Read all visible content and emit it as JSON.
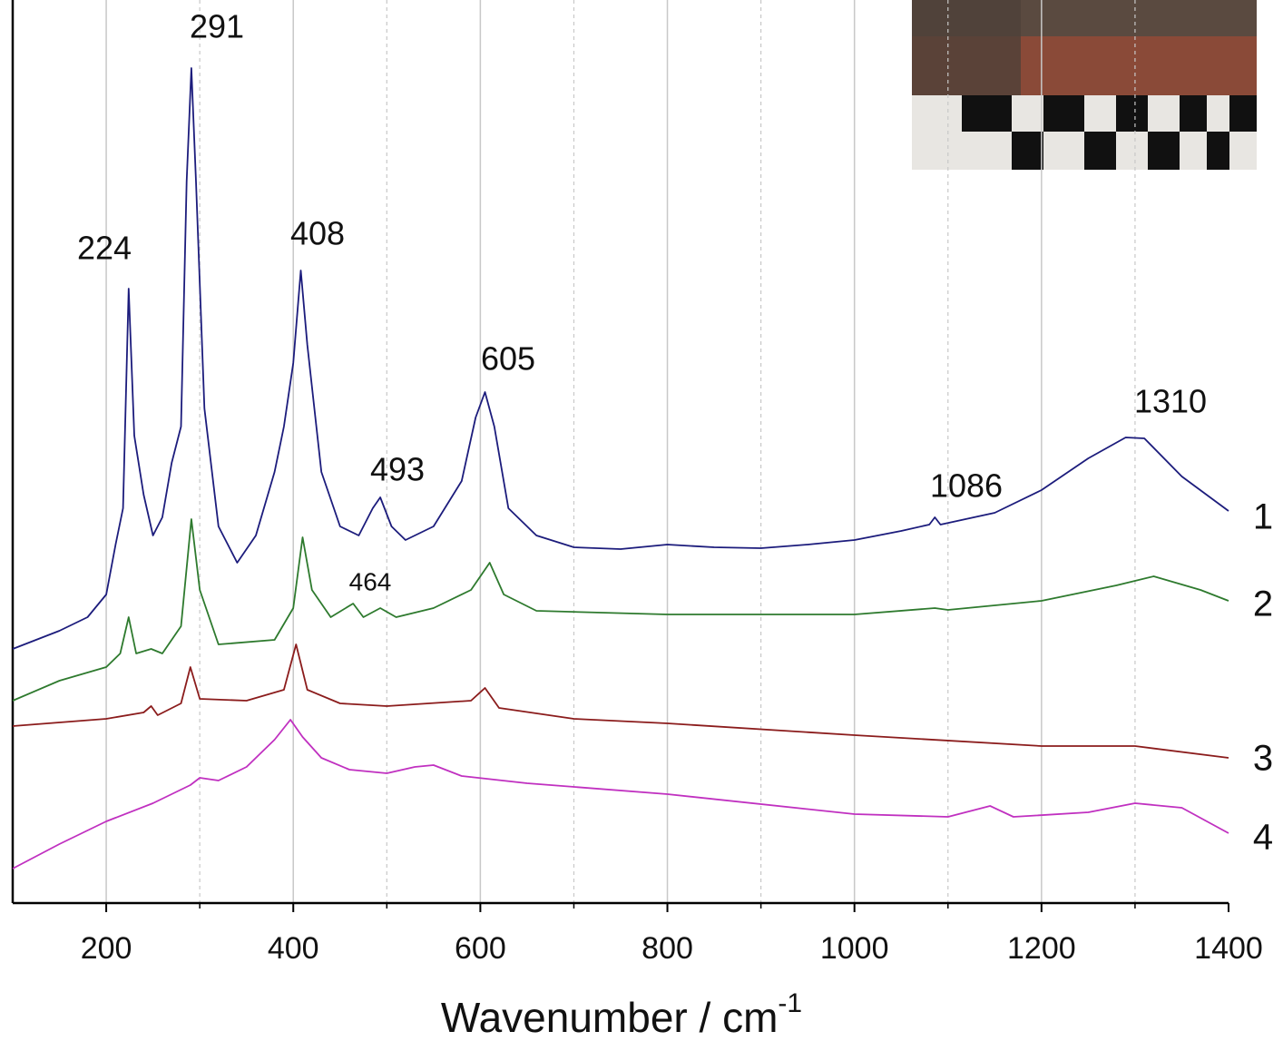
{
  "chart_data": {
    "type": "line",
    "xlabel": "Wavenumber / cm",
    "xlabel_sup": "-1",
    "xlim": [
      100,
      1400
    ],
    "xticks": [
      200,
      400,
      600,
      800,
      1000,
      1200,
      1400
    ],
    "xminorticks": [
      300,
      500,
      700,
      900,
      1100,
      1300
    ],
    "ylim": [
      0,
      1000
    ],
    "grid": true,
    "annotations": [
      "224",
      "291",
      "408",
      "605",
      "493",
      "1086",
      "1310",
      "464"
    ],
    "series": [
      {
        "name": "1",
        "color": "#1c1c7c",
        "x": [
          100,
          150,
          180,
          200,
          210,
          218,
          224,
          230,
          240,
          250,
          260,
          270,
          280,
          286,
          291,
          296,
          305,
          320,
          340,
          360,
          380,
          390,
          400,
          408,
          415,
          430,
          450,
          470,
          485,
          493,
          505,
          520,
          550,
          580,
          595,
          605,
          615,
          630,
          660,
          700,
          750,
          800,
          850,
          900,
          950,
          1000,
          1050,
          1080,
          1086,
          1092,
          1150,
          1200,
          1250,
          1290,
          1310,
          1350,
          1400
        ],
        "values": [
          280,
          300,
          315,
          340,
          395,
          435,
          677,
          515,
          450,
          405,
          425,
          485,
          525,
          795,
          920,
          795,
          545,
          415,
          375,
          405,
          475,
          525,
          595,
          697,
          615,
          475,
          415,
          405,
          435,
          447,
          415,
          400,
          415,
          465,
          535,
          563,
          525,
          435,
          405,
          392,
          390,
          395,
          392,
          391,
          395,
          400,
          410,
          417,
          425,
          417,
          430,
          455,
          490,
          513,
          512,
          470,
          432
        ]
      },
      {
        "name": "2",
        "color": "#2e7a2e",
        "x": [
          100,
          150,
          200,
          215,
          224,
          232,
          248,
          260,
          280,
          291,
          300,
          320,
          380,
          400,
          410,
          420,
          440,
          464,
          475,
          493,
          510,
          550,
          590,
          610,
          625,
          660,
          800,
          1000,
          1086,
          1100,
          1200,
          1280,
          1320,
          1370,
          1400
        ],
        "values": [
          223,
          245,
          260,
          275,
          315,
          275,
          280,
          275,
          305,
          423,
          345,
          285,
          290,
          325,
          403,
          345,
          315,
          330,
          315,
          325,
          315,
          325,
          345,
          375,
          340,
          322,
          318,
          318,
          325,
          323,
          333,
          350,
          360,
          345,
          333
        ]
      },
      {
        "name": "3",
        "color": "#8b1c1c",
        "x": [
          100,
          200,
          240,
          248,
          255,
          280,
          290,
          300,
          350,
          390,
          403,
          415,
          450,
          500,
          590,
          605,
          620,
          700,
          800,
          1000,
          1200,
          1300,
          1400
        ],
        "values": [
          195,
          203,
          210,
          217,
          207,
          220,
          260,
          225,
          223,
          235,
          285,
          235,
          220,
          217,
          223,
          237,
          215,
          203,
          198,
          185,
          173,
          173,
          160
        ]
      },
      {
        "name": "4",
        "color": "#c030c0",
        "x": [
          100,
          150,
          200,
          250,
          290,
          300,
          320,
          350,
          380,
          397,
          410,
          430,
          460,
          500,
          530,
          550,
          580,
          650,
          800,
          1000,
          1100,
          1145,
          1170,
          1250,
          1300,
          1350,
          1400
        ],
        "values": [
          38,
          65,
          90,
          110,
          130,
          138,
          135,
          150,
          180,
          202,
          183,
          160,
          147,
          143,
          150,
          152,
          140,
          132,
          120,
          98,
          95,
          107,
          95,
          100,
          110,
          105,
          77
        ]
      }
    ]
  }
}
